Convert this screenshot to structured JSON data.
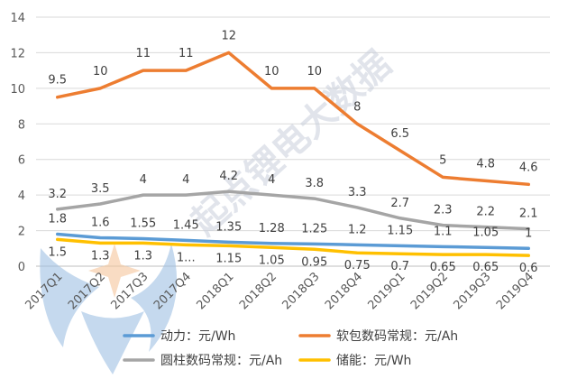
{
  "chart_data": {
    "type": "line",
    "categories": [
      "2017Q1",
      "2017Q2",
      "2017Q3",
      "2017Q4",
      "2018Q1",
      "2018Q2",
      "2018Q3",
      "2018Q4",
      "2019Q1",
      "2019Q2",
      "2019Q3",
      "2019Q4"
    ],
    "ylim": [
      0,
      14
    ],
    "yticks": [
      "0",
      "2",
      "4",
      "6",
      "8",
      "10",
      "12",
      "14"
    ],
    "grid": true,
    "legend_position": "bottom",
    "series": [
      {
        "name": "动力：元/Wh",
        "color": "#5b9bd5",
        "values": [
          1.8,
          1.6,
          1.55,
          1.45,
          1.35,
          1.28,
          1.25,
          1.2,
          1.15,
          1.1,
          1.05,
          1
        ],
        "labels": [
          "1.8",
          "1.6",
          "1.55",
          "1.45",
          "1.35",
          "1.28",
          "1.25",
          "1.2",
          "1.15",
          "1.1",
          "1.05",
          "1"
        ]
      },
      {
        "name": "软包数码常规：元/Ah",
        "color": "#ed7d31",
        "values": [
          9.5,
          10,
          11,
          11,
          12,
          10,
          10,
          8,
          6.5,
          5,
          4.8,
          4.6
        ],
        "labels": [
          "9.5",
          "10",
          "11",
          "11",
          "12",
          "10",
          "10",
          "8",
          "6.5",
          "5",
          "4.8",
          "4.6"
        ]
      },
      {
        "name": "圆柱数码常规：元/Ah",
        "color": "#a5a5a5",
        "values": [
          3.2,
          3.5,
          4,
          4,
          4.2,
          4,
          3.8,
          3.3,
          2.7,
          2.3,
          2.2,
          2.1
        ],
        "labels": [
          "3.2",
          "3.5",
          "4",
          "4",
          "4.2",
          "4",
          "3.8",
          "3.3",
          "2.7",
          "2.3",
          "2.2",
          "2.1"
        ]
      },
      {
        "name": "储能：元/Wh",
        "color": "#ffc000",
        "values": [
          1.5,
          1.3,
          1.3,
          1.2,
          1.15,
          1.05,
          0.95,
          0.75,
          0.7,
          0.65,
          0.65,
          0.6
        ],
        "labels": [
          "1.5",
          "1.3",
          "1.3",
          "1...",
          "1.15",
          "1.05",
          "0.95",
          "0.75",
          "0.7",
          "0.65",
          "0.65",
          "0.6"
        ]
      }
    ]
  },
  "watermark": {
    "text": "起点锂电大数据"
  }
}
